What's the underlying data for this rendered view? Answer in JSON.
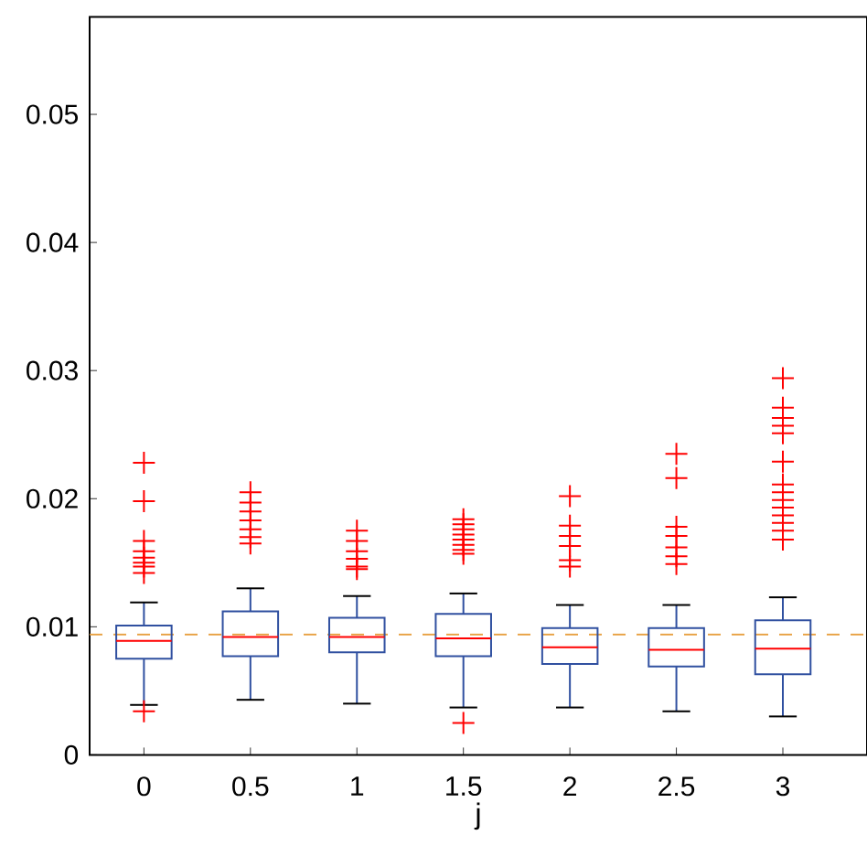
{
  "chart_data": {
    "type": "box",
    "xlabel": "j",
    "categories": [
      "0",
      "0.5",
      "1",
      "1.5",
      "2",
      "2.5",
      "3"
    ],
    "ylim": [
      0,
      0.0576
    ],
    "yticks": [
      0,
      0.01,
      0.02,
      0.03,
      0.04,
      0.05
    ],
    "marker": "cross",
    "series": [
      {
        "color": "#3050a0",
        "boxes": [
          {
            "low": 0.0039,
            "q1": 0.0075,
            "median": 0.0089,
            "q3": 0.0101,
            "high": 0.0119,
            "outliers": [
              0.0228,
              0.0198,
              0.0167,
              0.0159,
              0.0154,
              0.015,
              0.0147,
              0.0142,
              0.0034
            ]
          },
          {
            "low": 0.0043,
            "q1": 0.0077,
            "median": 0.0092,
            "q3": 0.0112,
            "high": 0.013,
            "outliers": [
              0.0205,
              0.0197,
              0.019,
              0.0183,
              0.0176,
              0.017,
              0.0165
            ]
          },
          {
            "low": 0.004,
            "q1": 0.008,
            "median": 0.0092,
            "q3": 0.0107,
            "high": 0.0124,
            "outliers": [
              0.0175,
              0.0167,
              0.0159,
              0.0153,
              0.0147,
              0.0145
            ]
          },
          {
            "low": 0.0037,
            "q1": 0.0077,
            "median": 0.0091,
            "q3": 0.011,
            "high": 0.0126,
            "outliers": [
              0.0184,
              0.018,
              0.0176,
              0.0172,
              0.0168,
              0.0164,
              0.016,
              0.0157,
              0.0025
            ]
          },
          {
            "low": 0.0037,
            "q1": 0.0071,
            "median": 0.0084,
            "q3": 0.0099,
            "high": 0.0117,
            "outliers": [
              0.0202,
              0.0179,
              0.0171,
              0.0163,
              0.0152,
              0.0147
            ]
          },
          {
            "low": 0.0034,
            "q1": 0.0069,
            "median": 0.0082,
            "q3": 0.0099,
            "high": 0.0117,
            "outliers": [
              0.0235,
              0.0216,
              0.0178,
              0.0171,
              0.0162,
              0.0155,
              0.0149
            ]
          },
          {
            "low": 0.003,
            "q1": 0.0063,
            "median": 0.0083,
            "q3": 0.0105,
            "high": 0.0123,
            "outliers": [
              0.0294,
              0.0271,
              0.0263,
              0.0257,
              0.0251,
              0.0229,
              0.0211,
              0.0205,
              0.0199,
              0.0193,
              0.0187,
              0.0181,
              0.0175,
              0.0168
            ]
          }
        ]
      }
    ],
    "ref_lines": [
      {
        "axis": "y",
        "value": 0.0094,
        "color": "#e8a040",
        "line_style": "dashed"
      }
    ]
  }
}
